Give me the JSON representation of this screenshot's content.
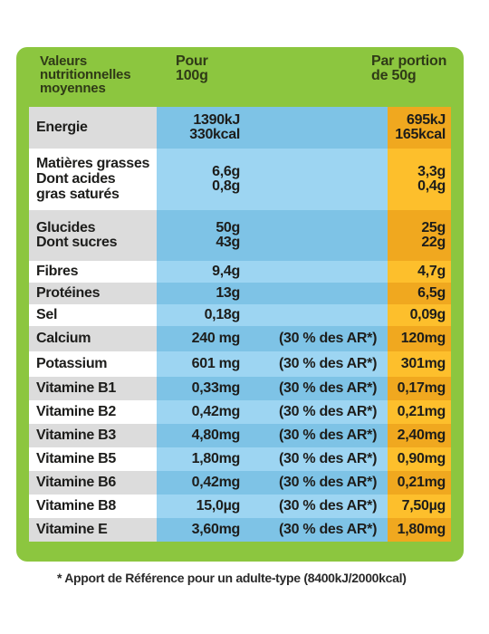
{
  "header": {
    "col1": [
      "Valeurs",
      "nutritionnelles",
      "moyennes"
    ],
    "col2": [
      "Pour",
      "100g"
    ],
    "col3": [
      "Par portion",
      "de 50g"
    ]
  },
  "rows": [
    {
      "name": [
        "Energie"
      ],
      "per100": [
        "1390kJ",
        "330kcal"
      ],
      "ar": [],
      "portion": [
        "695kJ",
        "165kcal"
      ]
    },
    {
      "name": [
        "Matières grasses",
        "Dont acides",
        "gras saturés"
      ],
      "per100": [
        "6,6g",
        "0,8g"
      ],
      "ar": [],
      "portion": [
        "3,3g",
        "0,4g"
      ]
    },
    {
      "name": [
        "Glucides",
        "Dont sucres"
      ],
      "per100": [
        "50g",
        "43g"
      ],
      "ar": [],
      "portion": [
        "25g",
        "22g"
      ]
    },
    {
      "name": [
        "Fibres"
      ],
      "per100": [
        "9,4g"
      ],
      "ar": [],
      "portion": [
        "4,7g"
      ]
    },
    {
      "name": [
        "Protéines"
      ],
      "per100": [
        "13g"
      ],
      "ar": [],
      "portion": [
        "6,5g"
      ]
    },
    {
      "name": [
        "Sel"
      ],
      "per100": [
        "0,18g"
      ],
      "ar": [],
      "portion": [
        "0,09g"
      ]
    },
    {
      "name": [
        "Calcium"
      ],
      "per100": [
        "240 mg"
      ],
      "ar": [
        "(30 % des AR*)"
      ],
      "portion": [
        "120mg"
      ]
    },
    {
      "name": [
        "Potassium"
      ],
      "per100": [
        "601 mg"
      ],
      "ar": [
        "(30 % des AR*)"
      ],
      "portion": [
        "301mg"
      ]
    },
    {
      "name": [
        "Vitamine B1"
      ],
      "per100": [
        "0,33mg"
      ],
      "ar": [
        "(30 % des AR*)"
      ],
      "portion": [
        "0,17mg"
      ]
    },
    {
      "name": [
        "Vitamine B2"
      ],
      "per100": [
        "0,42mg"
      ],
      "ar": [
        "(30 % des AR*)"
      ],
      "portion": [
        "0,21mg"
      ]
    },
    {
      "name": [
        "Vitamine B3"
      ],
      "per100": [
        "4,80mg"
      ],
      "ar": [
        "(30 % des AR*)"
      ],
      "portion": [
        "2,40mg"
      ]
    },
    {
      "name": [
        "Vitamine B5"
      ],
      "per100": [
        "1,80mg"
      ],
      "ar": [
        "(30 % des AR*)"
      ],
      "portion": [
        "0,90mg"
      ]
    },
    {
      "name": [
        "Vitamine B6"
      ],
      "per100": [
        "0,42mg"
      ],
      "ar": [
        "(30 % des AR*)"
      ],
      "portion": [
        "0,21mg"
      ]
    },
    {
      "name": [
        "Vitamine B8"
      ],
      "per100": [
        "15,0µg"
      ],
      "ar": [
        "(30 % des AR*)"
      ],
      "portion": [
        "7,50µg"
      ]
    },
    {
      "name": [
        "Vitamine E"
      ],
      "per100": [
        "3,60mg"
      ],
      "ar": [
        "(30 % des AR*)"
      ],
      "portion": [
        "1,80mg"
      ]
    }
  ],
  "footnote": "* Apport de Référence pour un adulte-type (8400kJ/2000kcal)",
  "colors": {
    "panel": "#8cc63f",
    "name_a": "#dcdcdc",
    "name_b": "#ffffff",
    "per100_a": "#7ec3e6",
    "per100_b": "#9dd5f2",
    "portion_a": "#f0a81f",
    "portion_b": "#fdbf2c"
  }
}
